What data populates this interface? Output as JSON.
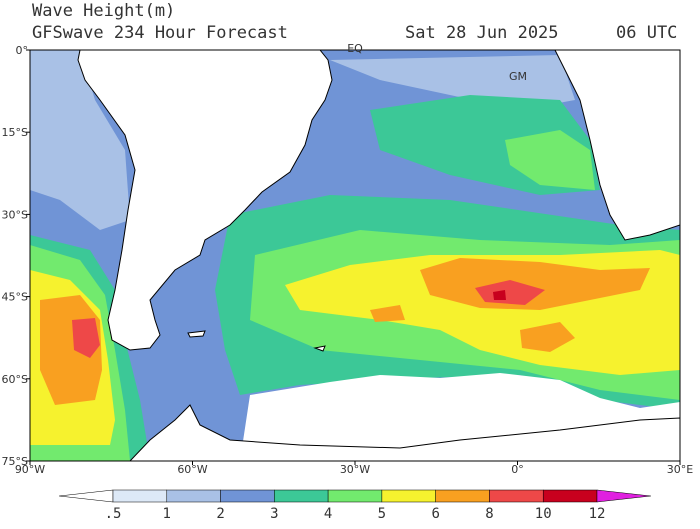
{
  "header": {
    "title": "Wave Height(m)",
    "subtitle": "GFSwave 234 Hour Forecast",
    "date": "Sat 28 Jun 2025",
    "time": "06 UTC"
  },
  "map": {
    "lonlim": [
      -90,
      30
    ],
    "latlim": [
      -75,
      0
    ],
    "lon_ticks": [
      {
        "value": -90,
        "label": "90°W"
      },
      {
        "value": -60,
        "label": "60°W"
      },
      {
        "value": -30,
        "label": "30°W"
      },
      {
        "value": 0,
        "label": "0°"
      },
      {
        "value": 30,
        "label": "30°E"
      }
    ],
    "lat_ticks": [
      {
        "value": 0,
        "label": "0°"
      },
      {
        "value": -15,
        "label": "15°S"
      },
      {
        "value": -30,
        "label": "30°S"
      },
      {
        "value": -45,
        "label": "45°S"
      },
      {
        "value": -60,
        "label": "60°S"
      },
      {
        "value": -75,
        "label": "75°S"
      }
    ],
    "labels": [
      "EQ",
      "GM"
    ]
  },
  "colorbar": {
    "ticks": [
      {
        "value": 0.5,
        "label": ".5"
      },
      1,
      2,
      3,
      4,
      5,
      6,
      8,
      10,
      12
    ],
    "colors": [
      "#ffffff",
      "#dde9f7",
      "#a9c1e6",
      "#7094d6",
      "#3cc897",
      "#72ea6e",
      "#f6f22e",
      "#f9a020",
      "#ee4848",
      "#c8001e",
      "#e020e0"
    ]
  }
}
